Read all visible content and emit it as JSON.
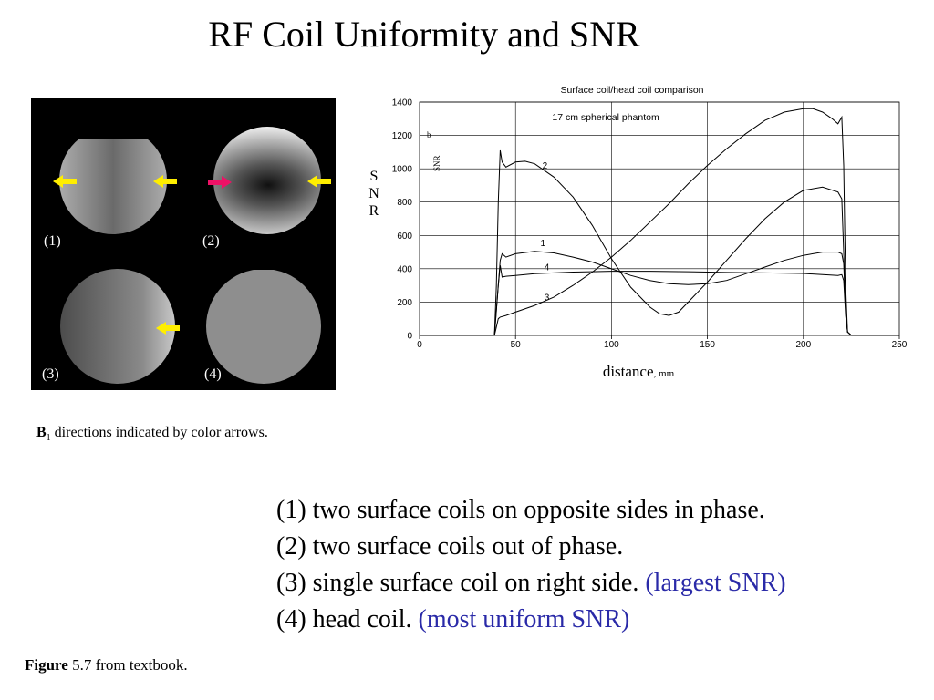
{
  "slide": {
    "title": "RF Coil Uniformity and SNR"
  },
  "mri_panel": {
    "labels": [
      "(1)",
      "(2)",
      "(3)",
      "(4)"
    ],
    "arrow_colors": {
      "yellow": "#ffee00",
      "red": "#ee1166"
    }
  },
  "b1_caption": {
    "symbol": "B",
    "subscript": "1",
    "text": " directions indicated by color arrows."
  },
  "chart_data": {
    "type": "line",
    "title": "Surface coil/head coil comparison",
    "annotation": "17 cm spherical phantom",
    "inner_ylabel": "SNR",
    "panel_letter": "b",
    "ylabel": "S N R",
    "xlabel": "distance",
    "xlabel_unit": ", mm",
    "xlim": [
      0,
      250
    ],
    "ylim": [
      0,
      1400
    ],
    "x_ticks": [
      0,
      50,
      100,
      150,
      200,
      250
    ],
    "y_ticks": [
      0,
      200,
      400,
      600,
      800,
      1000,
      1200,
      1400
    ],
    "grid": true,
    "series": [
      {
        "name": "1",
        "x": [
          0,
          39,
          40,
          41,
          42,
          43,
          45,
          50,
          60,
          70,
          80,
          90,
          100,
          110,
          120,
          130,
          140,
          150,
          160,
          170,
          180,
          190,
          200,
          210,
          218,
          220,
          221,
          222,
          223,
          225,
          250
        ],
        "y": [
          0,
          0,
          150,
          300,
          450,
          490,
          470,
          490,
          505,
          495,
          470,
          440,
          400,
          360,
          330,
          310,
          305,
          310,
          330,
          370,
          410,
          450,
          480,
          500,
          500,
          490,
          430,
          150,
          20,
          0,
          0
        ]
      },
      {
        "name": "2",
        "x": [
          0,
          39,
          40,
          41,
          42,
          43,
          45,
          50,
          55,
          60,
          70,
          80,
          90,
          100,
          110,
          120,
          125,
          130,
          135,
          140,
          150,
          160,
          170,
          180,
          190,
          200,
          210,
          218,
          220,
          221,
          222,
          223,
          225,
          250
        ],
        "y": [
          0,
          0,
          300,
          800,
          1110,
          1040,
          1010,
          1040,
          1045,
          1030,
          950,
          830,
          660,
          460,
          290,
          170,
          130,
          120,
          140,
          200,
          320,
          450,
          580,
          700,
          800,
          870,
          890,
          860,
          820,
          500,
          150,
          20,
          0,
          0
        ]
      },
      {
        "name": "3",
        "x": [
          0,
          39,
          40,
          41,
          42,
          45,
          50,
          60,
          70,
          80,
          90,
          100,
          110,
          120,
          130,
          140,
          150,
          160,
          170,
          180,
          190,
          200,
          205,
          210,
          215,
          218,
          220,
          221,
          222,
          223,
          225,
          250
        ],
        "y": [
          0,
          0,
          50,
          100,
          110,
          120,
          140,
          180,
          230,
          300,
          380,
          470,
          570,
          680,
          790,
          910,
          1020,
          1120,
          1210,
          1290,
          1340,
          1360,
          1360,
          1340,
          1300,
          1270,
          1310,
          1020,
          300,
          20,
          0,
          0
        ]
      },
      {
        "name": "4",
        "x": [
          0,
          39,
          40,
          41,
          42,
          43,
          45,
          50,
          60,
          70,
          80,
          100,
          120,
          140,
          160,
          180,
          200,
          210,
          218,
          220,
          221,
          222,
          223,
          225,
          250
        ],
        "y": [
          0,
          0,
          150,
          300,
          420,
          350,
          355,
          360,
          370,
          375,
          380,
          385,
          385,
          382,
          378,
          375,
          372,
          365,
          360,
          365,
          330,
          120,
          20,
          0,
          0
        ]
      }
    ],
    "series_label_positions": {
      "1": [
        63,
        535
      ],
      "2": [
        64,
        1000
      ],
      "3": [
        65,
        210
      ],
      "4": [
        65,
        390
      ]
    }
  },
  "descriptions": [
    {
      "main": "(1) two surface coils on opposite sides in phase.",
      "emph": ""
    },
    {
      "main": "(2) two surface coils out of phase.",
      "emph": ""
    },
    {
      "main": "(3) single surface coil on right side. ",
      "emph": "(largest SNR)"
    },
    {
      "main": "(4) head coil. ",
      "emph": "(most uniform SNR)"
    }
  ],
  "figure_caption": {
    "bold": "Figure",
    "text": " 5.7 from textbook."
  }
}
